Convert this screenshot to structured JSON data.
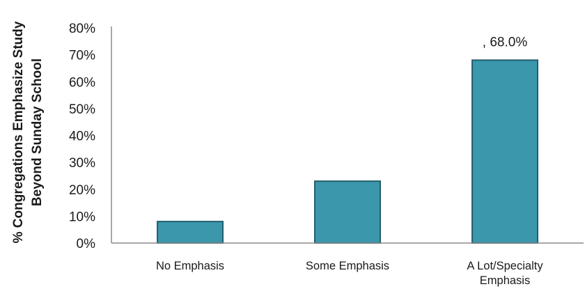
{
  "chart_data": {
    "type": "bar",
    "title": "",
    "xlabel": "",
    "ylabel_lines": [
      "% Congregations Emphasize Study",
      "Beyond Sunday School"
    ],
    "categories": [
      [
        "No Emphasis"
      ],
      [
        "Some Emphasis"
      ],
      [
        "A Lot/Specialty",
        "Emphasis"
      ]
    ],
    "values": [
      8.0,
      23.0,
      68.0
    ],
    "ylim": [
      0,
      80
    ],
    "yticks": [
      0,
      10,
      20,
      30,
      40,
      50,
      60,
      70,
      80
    ],
    "ytick_labels": [
      "0%",
      "10%",
      "20%",
      "30%",
      "40%",
      "50%",
      "60%",
      "70%",
      "80%"
    ],
    "data_labels": [
      "",
      "",
      ", 68.0%"
    ],
    "grid": false,
    "legend": "none",
    "colors": {
      "bar_fill": "#3a97ac",
      "bar_stroke": "#245f6e",
      "axis": "#8c8c8c"
    }
  }
}
